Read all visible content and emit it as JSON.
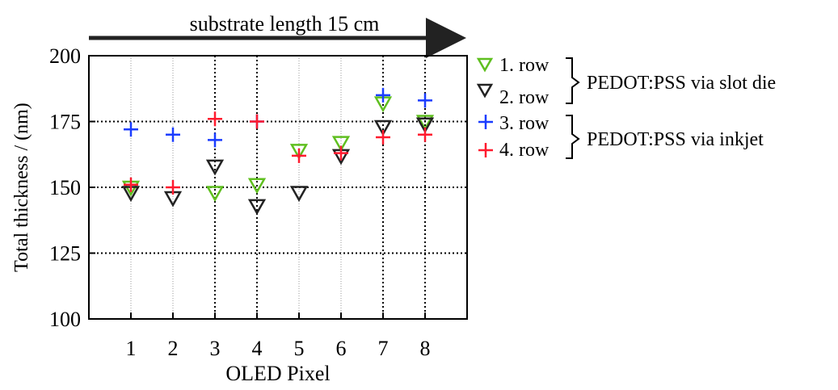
{
  "chart_data": {
    "type": "scatter",
    "top_annotation": "substrate length 15 cm",
    "xlabel": "OLED Pixel",
    "ylabel": "Total thickness / (nm)",
    "x_ticks": [
      1,
      2,
      3,
      4,
      5,
      6,
      7,
      8
    ],
    "y_ticks": [
      100,
      125,
      150,
      175,
      200
    ],
    "xlim": [
      0,
      9
    ],
    "ylim": [
      100,
      200
    ],
    "colors": {
      "row1": "#5fbf1f",
      "row2": "#222222",
      "row3": "#1a3cff",
      "row4": "#ff1a2e"
    },
    "series": [
      {
        "name": "1. row",
        "marker": "triangle-down",
        "color": "#5fbf1f",
        "x": [
          1,
          3,
          4,
          5,
          6,
          7,
          8
        ],
        "y": [
          150,
          148,
          151,
          164,
          167,
          182,
          175
        ]
      },
      {
        "name": "2. row",
        "marker": "triangle-down",
        "color": "#222222",
        "x": [
          1,
          2,
          3,
          4,
          5,
          6,
          7,
          8
        ],
        "y": [
          148,
          146,
          158,
          143,
          148,
          162,
          173,
          174
        ]
      },
      {
        "name": "3. row",
        "marker": "plus",
        "color": "#1a3cff",
        "x": [
          1,
          2,
          3,
          4,
          7,
          8
        ],
        "y": [
          172,
          170,
          168,
          175,
          185,
          183
        ]
      },
      {
        "name": "4. row",
        "marker": "plus",
        "color": "#ff1a2e",
        "x": [
          1,
          2,
          3,
          4,
          5,
          6,
          7,
          8
        ],
        "y": [
          151,
          150,
          176,
          175,
          162,
          163,
          169,
          170
        ]
      }
    ],
    "legend_groups": [
      {
        "label": "PEDOT:PSS via slot die",
        "members": [
          "1. row",
          "2. row"
        ]
      },
      {
        "label": "PEDOT:PSS via inkjet",
        "members": [
          "3. row",
          "4. row"
        ]
      }
    ],
    "legend_position": "right"
  }
}
